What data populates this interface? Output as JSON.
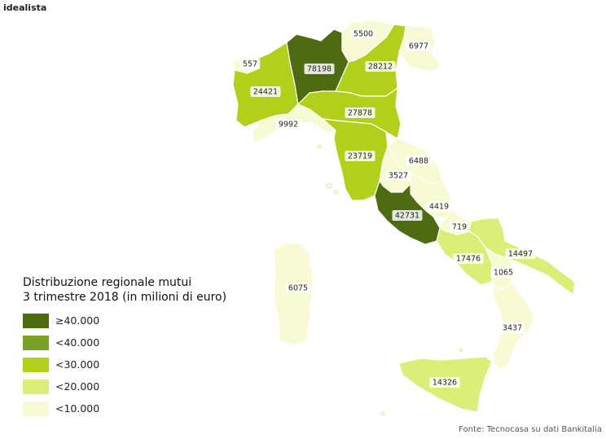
{
  "brand": "idealista",
  "legend": {
    "title_line1": "Distribuzione regionale mutui",
    "title_line2": "3 trimestre 2018 (in milioni di euro)",
    "items": [
      {
        "label": "≥40.000",
        "color": "#4e6b12"
      },
      {
        "label": "<40.000",
        "color": "#7aa126"
      },
      {
        "label": "<30.000",
        "color": "#b0d01c"
      },
      {
        "label": "<20.000",
        "color": "#dbee78"
      },
      {
        "label": "<10.000",
        "color": "#f7fad3"
      }
    ]
  },
  "regions": [
    {
      "name": "Valle d'Aosta",
      "value": "557",
      "class": 4
    },
    {
      "name": "Piemonte",
      "value": "24421",
      "class": 2
    },
    {
      "name": "Lombardia",
      "value": "78198",
      "class": 0
    },
    {
      "name": "Trentino-Alto Adige",
      "value": "5500",
      "class": 4
    },
    {
      "name": "Veneto",
      "value": "28212",
      "class": 2
    },
    {
      "name": "Friuli-Venezia Giulia",
      "value": "6977",
      "class": 4
    },
    {
      "name": "Liguria",
      "value": "9992",
      "class": 4
    },
    {
      "name": "Emilia-Romagna",
      "value": "27878",
      "class": 2
    },
    {
      "name": "Toscana",
      "value": "23719",
      "class": 2
    },
    {
      "name": "Marche",
      "value": "6488",
      "class": 4
    },
    {
      "name": "Umbria",
      "value": "3527",
      "class": 4
    },
    {
      "name": "Abruzzo",
      "value": "4419",
      "class": 4
    },
    {
      "name": "Lazio",
      "value": "42731",
      "class": 0
    },
    {
      "name": "Molise",
      "value": "719",
      "class": 4
    },
    {
      "name": "Campania",
      "value": "17476",
      "class": 3
    },
    {
      "name": "Puglia",
      "value": "14497",
      "class": 3
    },
    {
      "name": "Basilicata",
      "value": "1065",
      "class": 4
    },
    {
      "name": "Calabria",
      "value": "3437",
      "class": 4
    },
    {
      "name": "Sicilia",
      "value": "14326",
      "class": 3
    },
    {
      "name": "Sardegna",
      "value": "6075",
      "class": 4
    }
  ],
  "source": "Fonte: Tecnocasa su dati Bankitalia"
}
